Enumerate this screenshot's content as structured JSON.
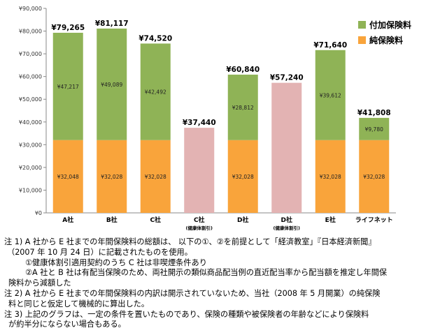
{
  "chart_data": {
    "type": "bar",
    "stacked": true,
    "y_tick_labels": [
      "¥0",
      "¥10,000",
      "¥20,000",
      "¥30,000",
      "¥40,000",
      "¥50,000",
      "¥60,000",
      "¥70,000",
      "¥80,000",
      "¥90,000"
    ],
    "ylim": [
      0,
      90000
    ],
    "grid": false,
    "legend_position": "top-right",
    "categories": [
      {
        "label": "A社",
        "sublabel": ""
      },
      {
        "label": "B社",
        "sublabel": ""
      },
      {
        "label": "C社",
        "sublabel": ""
      },
      {
        "label": "C社",
        "sublabel": "(健康体割引)"
      },
      {
        "label": "D社",
        "sublabel": ""
      },
      {
        "label": "D社",
        "sublabel": "(健康体割引)"
      },
      {
        "label": "E社",
        "sublabel": ""
      },
      {
        "label": "ライフネット",
        "sublabel": ""
      }
    ],
    "series": [
      {
        "name": "純保険料",
        "color": "#f9a43b",
        "values": [
          32048,
          32028,
          32028,
          null,
          32028,
          null,
          32028,
          32028
        ],
        "labels": [
          "¥32,048",
          "¥32,028",
          "¥32,028",
          "",
          "¥32,028",
          "",
          "¥32,028",
          "¥32,028"
        ]
      },
      {
        "name": "付加保険料",
        "color": "#8fb356",
        "values": [
          47217,
          49089,
          42492,
          null,
          28812,
          null,
          39612,
          9780
        ],
        "labels": [
          "¥47,217",
          "¥49,089",
          "¥42,492",
          "",
          "¥28,812",
          "",
          "¥39,612",
          "¥9,780"
        ]
      },
      {
        "name": "",
        "color": "#e3b3b3",
        "values": [
          null,
          null,
          null,
          37440,
          null,
          57240,
          null,
          null
        ],
        "labels": [
          "",
          "",
          "",
          "",
          "",
          "",
          "",
          ""
        ]
      }
    ],
    "totals": [
      79265,
      81117,
      74520,
      37440,
      60840,
      57240,
      71640,
      41808
    ],
    "total_labels": [
      "¥79,265",
      "¥81,117",
      "¥74,520",
      "¥37,440",
      "¥60,840",
      "¥57,240",
      "¥71,640",
      "¥41,808"
    ]
  },
  "legend": [
    {
      "label": "付加保険料",
      "color": "#8fb356"
    },
    {
      "label": "純保険料",
      "color": "#f9a43b"
    }
  ],
  "notes": [
    "注 1) A 社から E 社までの年間保険料の総額は、 以下の①、②を前提として「経済教室」『日本経済新聞』",
    "（2007 年 10 月 24 日）に記載されたものを使用。",
    "①健康体割引適用契約のうち C 社は非喫煙条件あり",
    "②A 社と B 社は有配当保険のため、両社開示の類似商品配当例の直近配当率から配当額を推定し年間保",
    "険料から減額した",
    "注 2) A 社から E 社までの年間保険料の内訳は開示されていないため、当社（2008 年 5 月開業）の純保険",
    "料と同じと仮定して機械的に算出した。",
    "注 3) 上記のグラフは、一定の条件を置いたものであり、保険の種類や被保険者の年齢などにより保険料",
    "が約半分にならない場合もある。"
  ]
}
